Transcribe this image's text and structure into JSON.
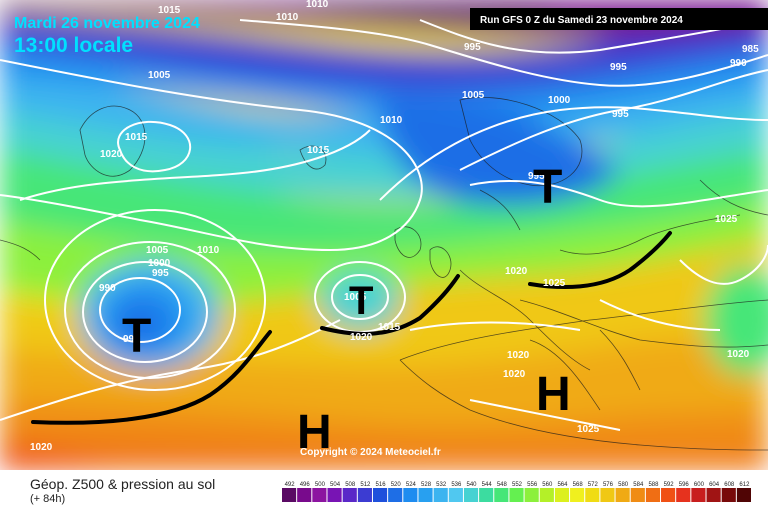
{
  "header": {
    "date": "Mardi 26 novembre 2024",
    "time": "13:00 locale",
    "run": "Run GFS 0 Z du Samedi 23 novembre 2024"
  },
  "copyright": "Copyright © 2024 Meteociel.fr",
  "footer": {
    "title": "Géop. Z500 & pression au sol",
    "subtitle": "(+ 84h)"
  },
  "systems": [
    {
      "label": "T",
      "kind": "low"
    },
    {
      "label": "T",
      "kind": "low"
    },
    {
      "label": "T",
      "kind": "low"
    },
    {
      "label": "H",
      "kind": "high"
    },
    {
      "label": "H",
      "kind": "high"
    }
  ],
  "isobar_labels": [
    "1015",
    "1010",
    "1010",
    "995",
    "995",
    "985",
    "990",
    "1005",
    "1005",
    "1000",
    "995",
    "1010",
    "1015",
    "1020",
    "1015",
    "995",
    "1025",
    "1005",
    "1010",
    "1000",
    "995",
    "990",
    "995",
    "1005",
    "1015",
    "1025",
    "1020",
    "1020",
    "1020",
    "1020",
    "1025",
    "1020",
    "1020"
  ],
  "scale": {
    "ticks": [
      "492",
      "496",
      "500",
      "504",
      "508",
      "512",
      "516",
      "520",
      "524",
      "528",
      "532",
      "536",
      "540",
      "544",
      "548",
      "552",
      "556",
      "560",
      "564",
      "568",
      "572",
      "576",
      "580",
      "584",
      "588",
      "592",
      "596",
      "600",
      "604",
      "608",
      "612"
    ],
    "colors": [
      "#5a0a64",
      "#780a8c",
      "#8c14a0",
      "#7814b4",
      "#5a28c8",
      "#3c3cd2",
      "#1e50dc",
      "#1e6ee6",
      "#1e8cf0",
      "#28a0f0",
      "#3cb4f0",
      "#50c8f0",
      "#46d2d2",
      "#3cdca0",
      "#46e678",
      "#64f050",
      "#8cf03c",
      "#b4f028",
      "#dcf01e",
      "#f0f01e",
      "#f0dc14",
      "#f0c814",
      "#f0aa14",
      "#f08c14",
      "#f06e14",
      "#f05014",
      "#e6321e",
      "#c81e1e",
      "#a01414",
      "#780a0a",
      "#500505"
    ]
  }
}
